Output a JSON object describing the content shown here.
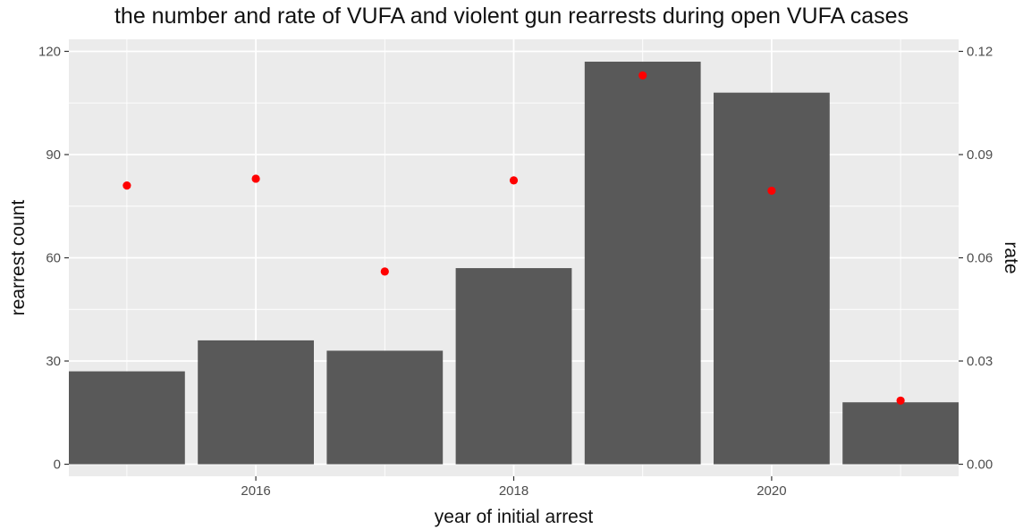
{
  "chart_data": {
    "type": "bar",
    "title": "the number and rate of VUFA  and violent gun rearrests during open VUFA cases",
    "xlabel": "year of initial arrest",
    "ylabel": "rearrest count",
    "y2label": "rate",
    "x": [
      2015,
      2016,
      2017,
      2018,
      2019,
      2020,
      2021
    ],
    "x_ticks": [
      2016,
      2018,
      2020
    ],
    "x_tick_labels": [
      "2016",
      "2018",
      "2020"
    ],
    "xlim": [
      2014.55,
      2021.45
    ],
    "series": [
      {
        "kind": "bar",
        "axis": "left",
        "color": "#595959",
        "values": [
          27,
          36,
          33,
          57,
          117,
          108,
          18
        ]
      },
      {
        "kind": "point",
        "axis": "right",
        "color": "#ff0000",
        "values": [
          0.081,
          0.083,
          0.056,
          0.0825,
          0.113,
          0.0795,
          0.0185
        ]
      }
    ],
    "ylim": [
      -3.5,
      123.5
    ],
    "y_ticks": [
      0,
      30,
      60,
      90,
      120
    ],
    "y_tick_labels": [
      "0",
      "30",
      "60",
      "90",
      "120"
    ],
    "y2lim": [
      -0.0035,
      0.1235
    ],
    "y2_ticks": [
      0,
      0.03,
      0.06,
      0.09,
      0.12
    ],
    "y2_tick_labels": [
      "0.00",
      "0.03",
      "0.06",
      "0.09",
      "0.12"
    ],
    "grid": true,
    "panel_background": "#ebebeb",
    "grid_color": "#ffffff"
  }
}
